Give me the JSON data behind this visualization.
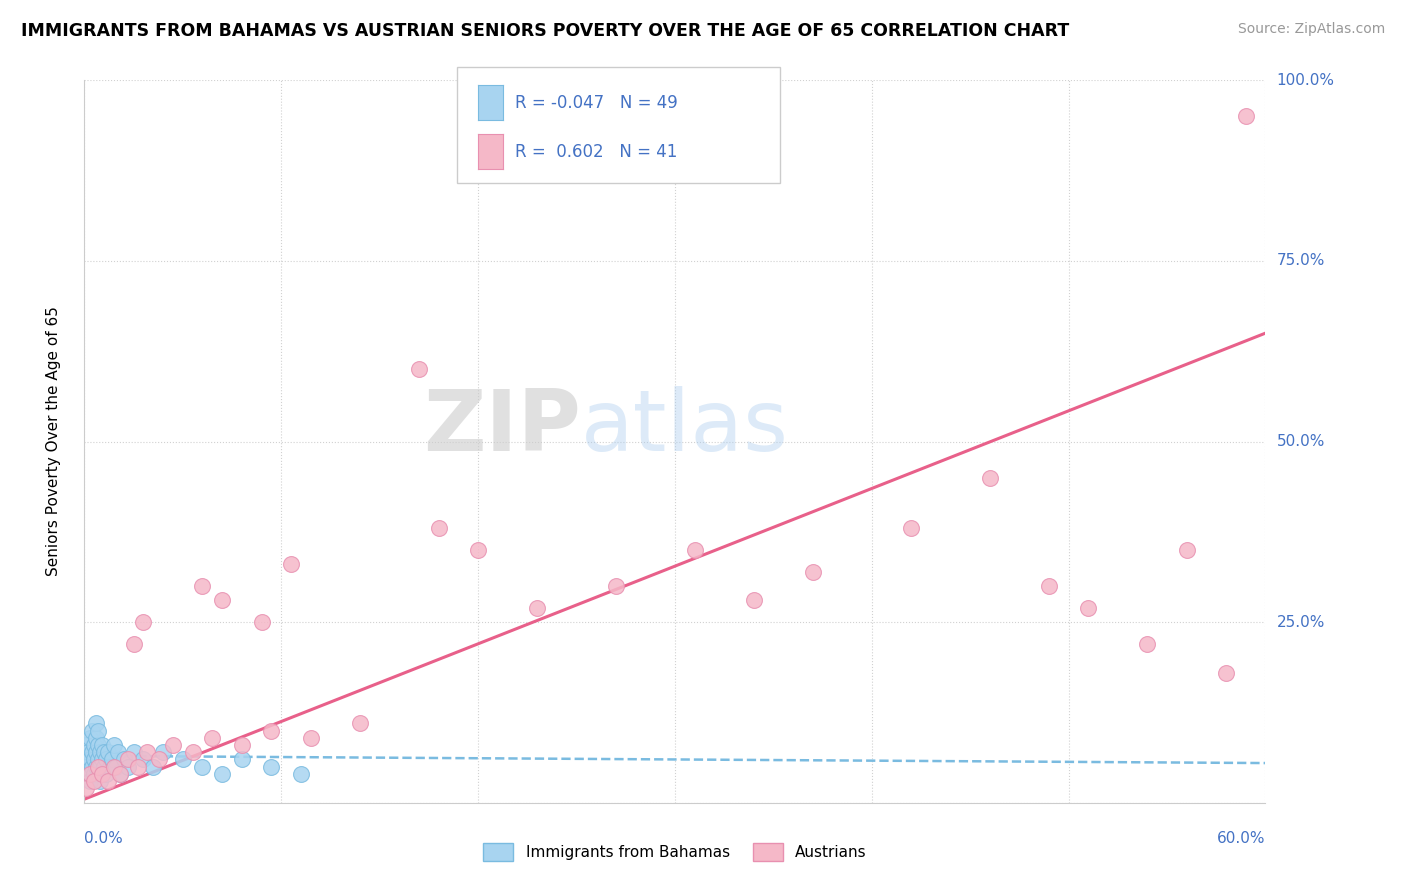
{
  "title": "IMMIGRANTS FROM BAHAMAS VS AUSTRIAN SENIORS POVERTY OVER THE AGE OF 65 CORRELATION CHART",
  "source": "Source: ZipAtlas.com",
  "ylabel_label": "Seniors Poverty Over the Age of 65",
  "legend_label1": "Immigrants from Bahamas",
  "legend_label2": "Austrians",
  "r1": -0.047,
  "n1": 49,
  "r2": 0.602,
  "n2": 41,
  "color_blue": "#A8D4F0",
  "color_pink": "#F5B8C8",
  "color_blue_edge": "#7ABBE0",
  "color_pink_edge": "#E890B0",
  "color_blue_text": "#4472C4",
  "color_trendline_blue": "#7ABBE0",
  "color_trendline_pink": "#E8608A",
  "watermark_zip": "ZIP",
  "watermark_atlas": "atlas",
  "xlim": [
    0.0,
    0.6
  ],
  "ylim": [
    0.0,
    1.0
  ],
  "blue_scatter_x": [
    0.001,
    0.001,
    0.002,
    0.002,
    0.003,
    0.003,
    0.003,
    0.004,
    0.004,
    0.004,
    0.005,
    0.005,
    0.005,
    0.006,
    0.006,
    0.006,
    0.006,
    0.007,
    0.007,
    0.007,
    0.007,
    0.008,
    0.008,
    0.008,
    0.009,
    0.009,
    0.01,
    0.01,
    0.011,
    0.011,
    0.012,
    0.013,
    0.014,
    0.015,
    0.016,
    0.017,
    0.018,
    0.02,
    0.022,
    0.025,
    0.03,
    0.035,
    0.04,
    0.05,
    0.06,
    0.07,
    0.08,
    0.095,
    0.11
  ],
  "blue_scatter_y": [
    0.05,
    0.08,
    0.04,
    0.07,
    0.03,
    0.06,
    0.09,
    0.05,
    0.07,
    0.1,
    0.04,
    0.06,
    0.08,
    0.05,
    0.07,
    0.09,
    0.11,
    0.04,
    0.06,
    0.08,
    0.1,
    0.05,
    0.07,
    0.03,
    0.06,
    0.08,
    0.05,
    0.07,
    0.04,
    0.06,
    0.07,
    0.05,
    0.06,
    0.08,
    0.05,
    0.07,
    0.04,
    0.06,
    0.05,
    0.07,
    0.06,
    0.05,
    0.07,
    0.06,
    0.05,
    0.04,
    0.06,
    0.05,
    0.04
  ],
  "pink_scatter_x": [
    0.001,
    0.003,
    0.005,
    0.007,
    0.009,
    0.012,
    0.015,
    0.018,
    0.022,
    0.027,
    0.032,
    0.038,
    0.045,
    0.055,
    0.065,
    0.08,
    0.095,
    0.115,
    0.14,
    0.03,
    0.025,
    0.06,
    0.07,
    0.09,
    0.105,
    0.18,
    0.2,
    0.23,
    0.27,
    0.17,
    0.31,
    0.34,
    0.37,
    0.42,
    0.46,
    0.49,
    0.51,
    0.54,
    0.56,
    0.58,
    0.59
  ],
  "pink_scatter_y": [
    0.02,
    0.04,
    0.03,
    0.05,
    0.04,
    0.03,
    0.05,
    0.04,
    0.06,
    0.05,
    0.07,
    0.06,
    0.08,
    0.07,
    0.09,
    0.08,
    0.1,
    0.09,
    0.11,
    0.25,
    0.22,
    0.3,
    0.28,
    0.25,
    0.33,
    0.38,
    0.35,
    0.27,
    0.3,
    0.6,
    0.35,
    0.28,
    0.32,
    0.38,
    0.45,
    0.3,
    0.27,
    0.22,
    0.35,
    0.18,
    0.95
  ],
  "pink_trendline_x": [
    0.0,
    0.6
  ],
  "pink_trendline_y": [
    0.005,
    0.65
  ],
  "blue_trendline_x": [
    0.0,
    0.6
  ],
  "blue_trendline_y": [
    0.065,
    0.055
  ]
}
